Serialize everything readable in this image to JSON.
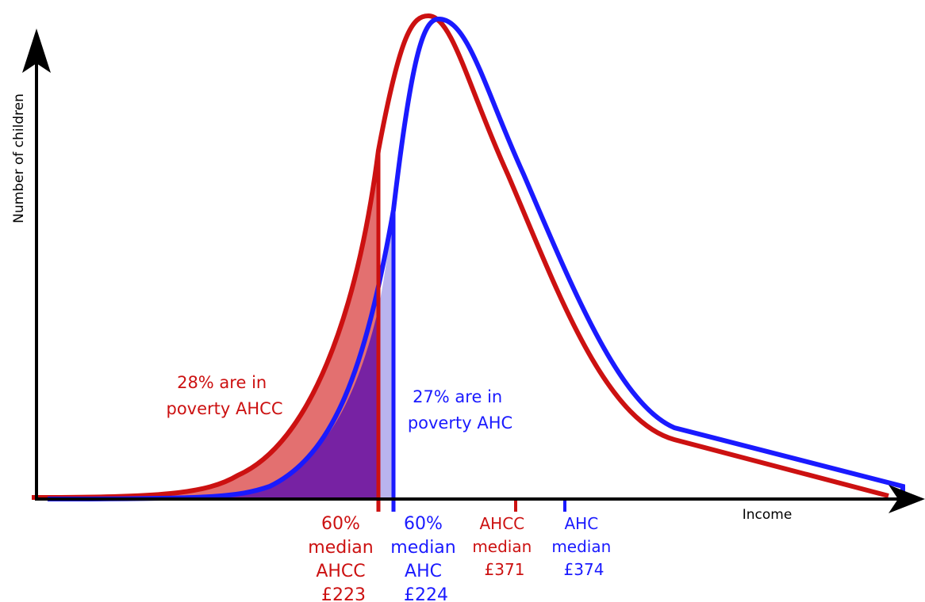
{
  "axes": {
    "y_label": "Number of children",
    "x_label": "Income"
  },
  "colors": {
    "ahcc": "#cc1111",
    "ahc": "#1a1aff",
    "ahcc_fill_light": "#e37070",
    "overlap_fill": "#6a1aa8",
    "ahc_fill_light": "#b9b4ee",
    "axis": "#000000"
  },
  "annotations": {
    "ahcc_poverty": [
      "28% are in",
      "poverty AHCC"
    ],
    "ahc_poverty": [
      "27% are in",
      "poverty AHC"
    ]
  },
  "markers": {
    "ahcc_threshold": [
      "60%",
      "median",
      "AHCC",
      "£223"
    ],
    "ahc_threshold": [
      "60%",
      "median",
      "AHC",
      "£224"
    ],
    "ahcc_median": [
      "AHCC",
      "median",
      "£371"
    ],
    "ahc_median": [
      "AHC",
      "median",
      "£374"
    ]
  }
}
